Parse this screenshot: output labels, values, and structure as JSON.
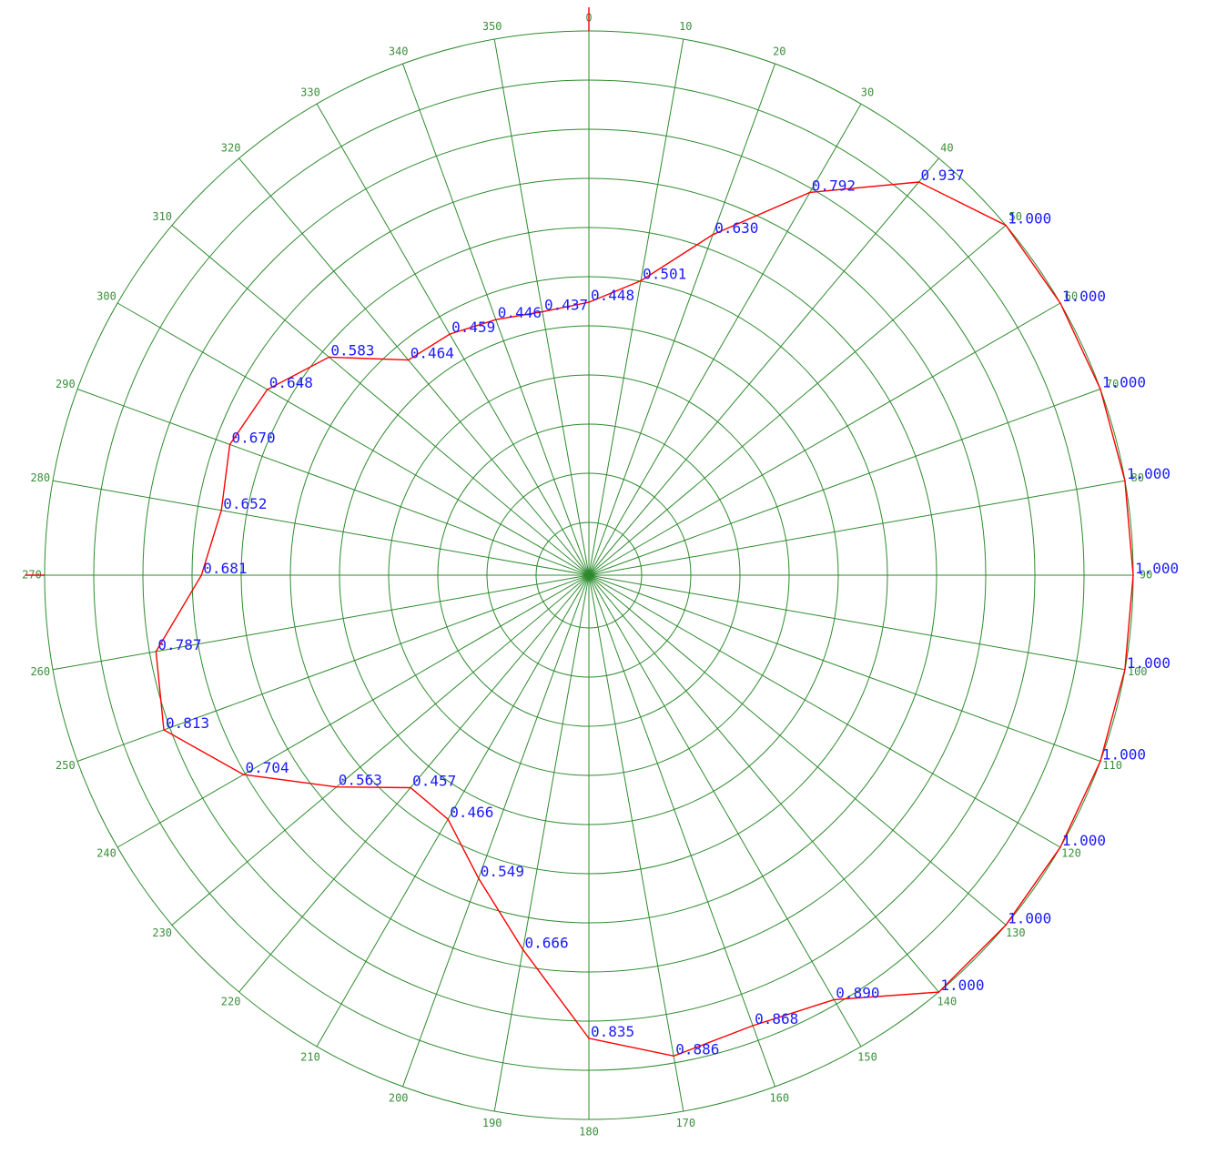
{
  "chart_data": {
    "type": "polar",
    "title": "",
    "angle_unit": "degrees",
    "direction": "clockwise",
    "zero_at": "top",
    "rlim": [
      0,
      1
    ],
    "ring_count": 10,
    "spoke_step_deg": 10,
    "grid": true,
    "colors": {
      "grid": "#2e8b2e",
      "angle_labels": "#3a8f3a",
      "series": "#ff0000",
      "value_labels": "#1a1aff"
    },
    "angle_ticks": [
      "0",
      "10",
      "20",
      "30",
      "40",
      "50",
      "60",
      "70",
      "80",
      "90",
      "100",
      "110",
      "120",
      "130",
      "140",
      "150",
      "160",
      "170",
      "180",
      "190",
      "200",
      "210",
      "220",
      "230",
      "240",
      "250",
      "260",
      "270",
      "280",
      "290",
      "300",
      "310",
      "320",
      "330",
      "340",
      "350"
    ],
    "series": [
      {
        "angles": [
          0,
          10,
          20,
          30,
          40,
          50,
          60,
          70,
          80,
          90,
          100,
          110,
          120,
          130,
          140,
          150,
          160,
          170,
          180,
          190,
          200,
          210,
          220,
          230,
          240,
          250,
          260,
          270,
          280,
          290,
          300,
          310,
          320,
          330,
          340,
          350
        ],
        "values": [
          0.448,
          0.501,
          0.63,
          0.792,
          0.937,
          1.0,
          1.0,
          1.0,
          1.0,
          1.0,
          1.0,
          1.0,
          1.0,
          1.0,
          1.0,
          0.89,
          0.868,
          0.886,
          0.835,
          0.666,
          0.549,
          0.466,
          0.457,
          0.563,
          0.704,
          0.813,
          0.787,
          0.681,
          0.652,
          0.67,
          0.648,
          0.583,
          0.464,
          0.459,
          0.446,
          0.437
        ],
        "labels": [
          "0.448",
          "0.501",
          "0.630",
          "0.792",
          "0.937",
          "1.000",
          "1.000",
          "1.000",
          "1.000",
          "1.000",
          "1.000",
          "1.000",
          "1.000",
          "1.000",
          "1.000",
          "0.890",
          "0.868",
          "0.886",
          "0.835",
          "0.666",
          "0.549",
          "0.466",
          "0.457",
          "0.563",
          "0.704",
          "0.813",
          "0.787",
          "0.681",
          "0.652",
          "0.670",
          "0.648",
          "0.583",
          "0.464",
          "0.459",
          "0.446",
          "0.437"
        ]
      }
    ]
  }
}
